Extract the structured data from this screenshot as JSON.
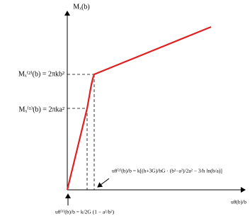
{
  "axes": {
    "y_label": "Mₓ(b)",
    "x_label": "uθ(b)/b"
  },
  "levels": {
    "upper": "Mₓ⁽²⁾(b) = 2πkb²",
    "lower": "Mₓ⁽¹⁾(b) = 2πka²"
  },
  "annotations": {
    "first": "uθ⁽¹⁾(b)/b = k/2G (1 − a²/b²)",
    "second": "uθ⁽²⁾(b)/b = k[(h+3G)/hG · (b²−a²)/2a² − 3/h ln(b/a)]"
  }
}
